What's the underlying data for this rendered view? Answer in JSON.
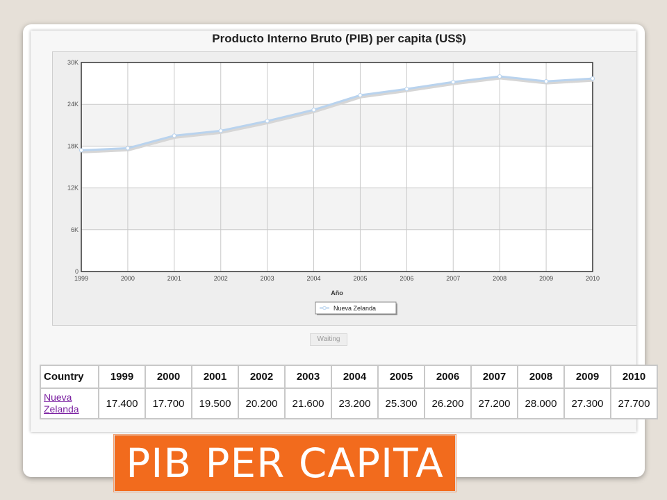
{
  "slide": {
    "banner_text": "PIB PER CAPITA",
    "waiting_label": "Waiting"
  },
  "chart_data": {
    "type": "line",
    "title": "Producto Interno Bruto (PIB) per capita (US$)",
    "xlabel": "Año",
    "ylabel": "",
    "categories": [
      "1999",
      "2000",
      "2001",
      "2002",
      "2003",
      "2004",
      "2005",
      "2006",
      "2007",
      "2008",
      "2009",
      "2010"
    ],
    "series": [
      {
        "name": "Nueva Zelanda",
        "values": [
          17400,
          17700,
          19500,
          20200,
          21600,
          23200,
          25300,
          26200,
          27200,
          28000,
          27300,
          27700
        ]
      }
    ],
    "ylim": [
      0,
      30000
    ],
    "yticks": [
      0,
      6000,
      12000,
      18000,
      24000,
      30000
    ],
    "ytick_labels": [
      "0",
      "6K",
      "12K",
      "18K",
      "24K",
      "30K"
    ],
    "grid": true,
    "legend": "bottom-center",
    "colors": {
      "line": "#b9d3ee",
      "marker": "#ffffff"
    }
  },
  "table": {
    "header_country": "Country",
    "years": [
      "1999",
      "2000",
      "2001",
      "2002",
      "2003",
      "2004",
      "2005",
      "2006",
      "2007",
      "2008",
      "2009",
      "2010"
    ],
    "rows": [
      {
        "country": "Nueva Zelanda",
        "values": [
          "17.400",
          "17.700",
          "19.500",
          "20.200",
          "21.600",
          "23.200",
          "25.300",
          "26.200",
          "27.200",
          "28.000",
          "27.300",
          "27.700"
        ]
      }
    ]
  }
}
